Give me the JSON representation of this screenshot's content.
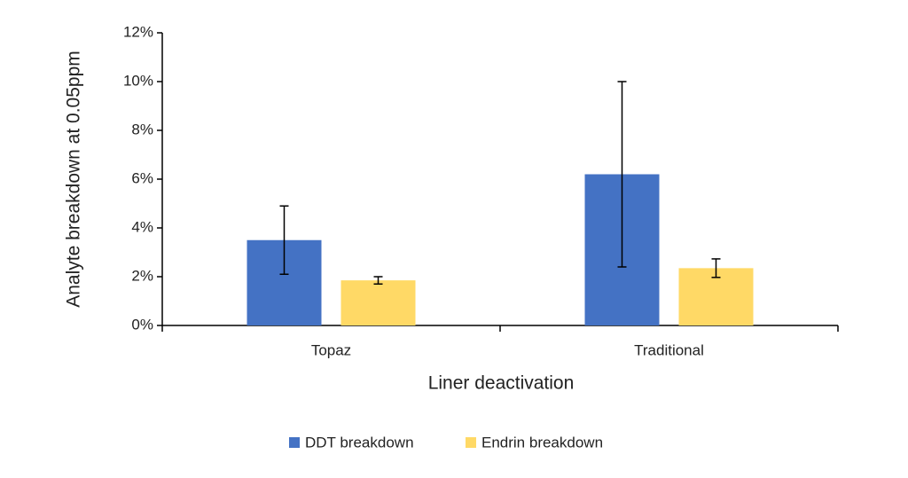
{
  "chart_data": {
    "type": "bar",
    "x_label": "Liner deactivation",
    "y_label": "Analyte breakdown at 0.05ppm",
    "categories": [
      "Topaz",
      "Traditional"
    ],
    "series": [
      {
        "name": "DDT breakdown",
        "color": "#4472c4",
        "values": [
          3.5,
          6.2
        ],
        "errors": [
          1.4,
          3.8
        ]
      },
      {
        "name": "Endrin breakdown",
        "color": "#ffd966",
        "values": [
          1.85,
          2.35
        ],
        "errors": [
          0.15,
          0.38
        ]
      }
    ],
    "ylim": [
      0,
      12
    ],
    "yticks": [
      {
        "value": 0,
        "label": "0%"
      },
      {
        "value": 2,
        "label": "2%"
      },
      {
        "value": 4,
        "label": "4%"
      },
      {
        "value": 6,
        "label": "6%"
      },
      {
        "value": 8,
        "label": "8%"
      },
      {
        "value": 10,
        "label": "10%"
      },
      {
        "value": 12,
        "label": "12%"
      }
    ],
    "grid": false,
    "legend": "bottom"
  }
}
